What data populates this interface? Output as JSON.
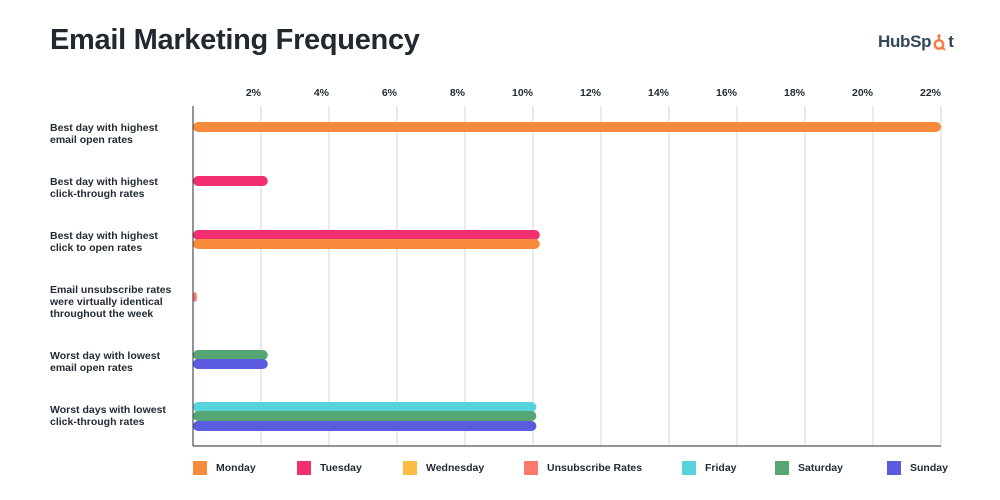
{
  "title": "Email Marketing Frequency",
  "logo": {
    "text_before": "HubSp",
    "text_after": "t",
    "icon": "hubspot-sprocket-icon",
    "color": "#f57c3f"
  },
  "chart_data": {
    "type": "bar",
    "orientation": "horizontal",
    "title": "Email Marketing Frequency",
    "xlim": [
      0,
      22
    ],
    "x_ticks": [
      "2%",
      "4%",
      "6%",
      "8%",
      "10%",
      "12%",
      "14%",
      "16%",
      "18%",
      "20%",
      "22%"
    ],
    "x_tick_values": [
      2,
      4,
      6,
      8,
      10,
      12,
      14,
      16,
      18,
      20,
      22
    ],
    "grid": "vertical",
    "legend_position": "bottom",
    "categories": [
      "Best day with highest email open rates",
      "Best day with highest click-through rates",
      "Best day with highest click to open rates",
      "Email unsubscribe rates were virtually identical throughout the week",
      "Worst day with lowest email open rates",
      "Worst days with lowest click-through rates"
    ],
    "category_labels": [
      [
        "Best day with highest",
        "email open rates"
      ],
      [
        "Best day with highest",
        "click-through rates"
      ],
      [
        "Best day with highest",
        "click to open rates"
      ],
      [
        "Email unsubscribe rates",
        "were virtually identical",
        "throughout the week"
      ],
      [
        "Worst day with lowest",
        "email open rates"
      ],
      [
        "Worst days with lowest",
        "click-through rates"
      ]
    ],
    "bars": [
      [
        {
          "series": "Monday",
          "value": 22
        }
      ],
      [
        {
          "series": "Tuesday",
          "value": 2.2
        }
      ],
      [
        {
          "series": "Tuesday",
          "value": 10.2
        },
        {
          "series": "Monday",
          "value": 10.2
        }
      ],
      [
        {
          "series": "Unsubscribe Rates",
          "value": 0.1
        }
      ],
      [
        {
          "series": "Saturday",
          "value": 2.2
        },
        {
          "series": "Sunday",
          "value": 2.2
        }
      ],
      [
        {
          "series": "Friday",
          "value": 10.1
        },
        {
          "series": "Saturday",
          "value": 10.1
        },
        {
          "series": "Sunday",
          "value": 10.1
        }
      ]
    ],
    "series": [
      {
        "name": "Monday",
        "color": "#f88a3c"
      },
      {
        "name": "Tuesday",
        "color": "#f23070"
      },
      {
        "name": "Wednesday",
        "color": "#fdbd43"
      },
      {
        "name": "Unsubscribe Rates",
        "color": "#f87b6e"
      },
      {
        "name": "Friday",
        "color": "#57d3dc"
      },
      {
        "name": "Saturday",
        "color": "#55a672"
      },
      {
        "name": "Sunday",
        "color": "#5b5bdf"
      }
    ]
  }
}
